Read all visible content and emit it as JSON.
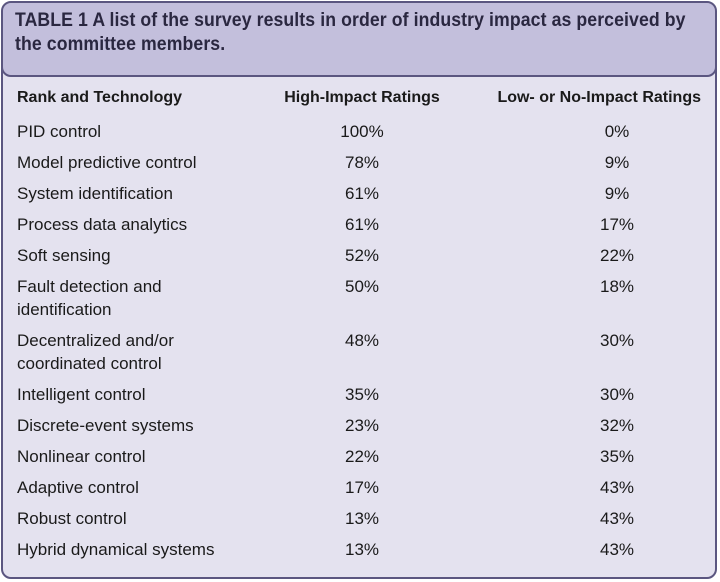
{
  "caption": "TABLE 1 A list of the survey results in order of industry impact as perceived by the committee members.",
  "headers": {
    "technology": "Rank and Technology",
    "high": "High-Impact Ratings",
    "low": "Low- or No-Impact Ratings"
  },
  "rows": [
    {
      "tech": "PID control",
      "high": "100%",
      "low": "0%"
    },
    {
      "tech": "Model predictive control",
      "high": "78%",
      "low": "9%"
    },
    {
      "tech": "System identification",
      "high": "61%",
      "low": "9%"
    },
    {
      "tech": "Process data analytics",
      "high": "61%",
      "low": "17%"
    },
    {
      "tech": "Soft sensing",
      "high": "52%",
      "low": "22%"
    },
    {
      "tech": "Fault detection and identification",
      "high": "50%",
      "low": "18%"
    },
    {
      "tech": "Decentralized and/or coordinated control",
      "high": "48%",
      "low": "30%"
    },
    {
      "tech": "Intelligent control",
      "high": "35%",
      "low": "30%"
    },
    {
      "tech": "Discrete-event systems",
      "high": "23%",
      "low": "32%"
    },
    {
      "tech": "Nonlinear control",
      "high": "22%",
      "low": "35%"
    },
    {
      "tech": "Adaptive control",
      "high": "17%",
      "low": "43%"
    },
    {
      "tech": "Robust control",
      "high": "13%",
      "low": "43%"
    },
    {
      "tech": "Hybrid dynamical systems",
      "high": "13%",
      "low": "43%"
    }
  ],
  "colors": {
    "panel": "#e4e2ef",
    "caption_bg": "#c3bfdc",
    "border": "#5b5680"
  }
}
